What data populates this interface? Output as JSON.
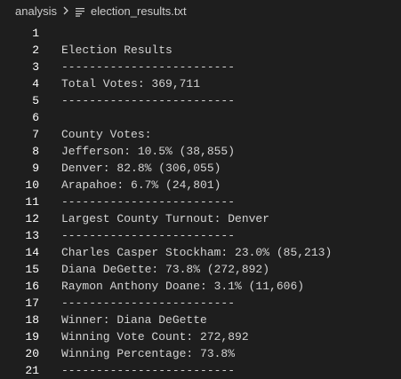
{
  "breadcrumb": {
    "folder": "analysis",
    "separator_icon": "chevron-right-icon",
    "file_icon": "text-file-icon",
    "file": "election_results.txt"
  },
  "editor": {
    "lines": [
      {
        "number": "1",
        "text": ""
      },
      {
        "number": "2",
        "text": "Election Results"
      },
      {
        "number": "3",
        "text": "-------------------------"
      },
      {
        "number": "4",
        "text": "Total Votes: 369,711"
      },
      {
        "number": "5",
        "text": "-------------------------"
      },
      {
        "number": "6",
        "text": ""
      },
      {
        "number": "7",
        "text": "County Votes:"
      },
      {
        "number": "8",
        "text": "Jefferson: 10.5% (38,855)"
      },
      {
        "number": "9",
        "text": "Denver: 82.8% (306,055)"
      },
      {
        "number": "10",
        "text": "Arapahoe: 6.7% (24,801)"
      },
      {
        "number": "11",
        "text": "-------------------------"
      },
      {
        "number": "12",
        "text": "Largest County Turnout: Denver"
      },
      {
        "number": "13",
        "text": "-------------------------"
      },
      {
        "number": "14",
        "text": "Charles Casper Stockham: 23.0% (85,213)"
      },
      {
        "number": "15",
        "text": "Diana DeGette: 73.8% (272,892)"
      },
      {
        "number": "16",
        "text": "Raymon Anthony Doane: 3.1% (11,606)"
      },
      {
        "number": "17",
        "text": "-------------------------"
      },
      {
        "number": "18",
        "text": "Winner: Diana DeGette"
      },
      {
        "number": "19",
        "text": "Winning Vote Count: 272,892"
      },
      {
        "number": "20",
        "text": "Winning Percentage: 73.8%"
      },
      {
        "number": "21",
        "text": "-------------------------"
      }
    ]
  },
  "colors": {
    "background": "#1e1e1e",
    "text": "#d4d4d4",
    "line_number": "#ffffff"
  }
}
